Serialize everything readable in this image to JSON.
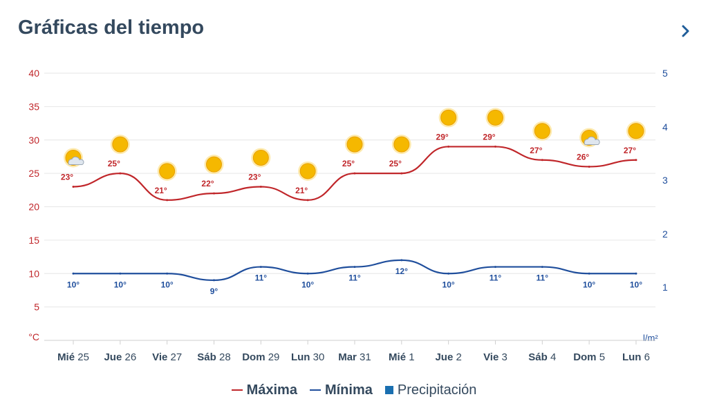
{
  "header": {
    "title": "Gráficas del tiempo",
    "next_icon": "chevron-right-icon"
  },
  "chart_data": {
    "type": "line",
    "left_axis": {
      "ticks": [
        40,
        35,
        30,
        25,
        20,
        15,
        10,
        5
      ],
      "unit": "°C",
      "range": [
        0,
        40
      ],
      "color": "#c0262a"
    },
    "right_axis": {
      "ticks": [
        5,
        4,
        3,
        2,
        1
      ],
      "unit": "l/m²",
      "color": "#1f4e9c"
    },
    "days": [
      {
        "dow": "Mié",
        "num": "25"
      },
      {
        "dow": "Jue",
        "num": "26"
      },
      {
        "dow": "Vie",
        "num": "27"
      },
      {
        "dow": "Sáb",
        "num": "28"
      },
      {
        "dow": "Dom",
        "num": "29"
      },
      {
        "dow": "Lun",
        "num": "30"
      },
      {
        "dow": "Mar",
        "num": "31"
      },
      {
        "dow": "Mié",
        "num": "1"
      },
      {
        "dow": "Jue",
        "num": "2"
      },
      {
        "dow": "Vie",
        "num": "3"
      },
      {
        "dow": "Sáb",
        "num": "4"
      },
      {
        "dow": "Dom",
        "num": "5"
      },
      {
        "dow": "Lun",
        "num": "6"
      }
    ],
    "series": [
      {
        "name": "Máxima",
        "color": "#c0262a",
        "values": [
          23,
          25,
          21,
          22,
          23,
          21,
          25,
          25,
          29,
          29,
          27,
          26,
          27
        ],
        "labels": [
          "23°",
          "25°",
          "21°",
          "22°",
          "23°",
          "21°",
          "25°",
          "25°",
          "29°",
          "29°",
          "27°",
          "26°",
          "27°"
        ]
      },
      {
        "name": "Mínima",
        "color": "#1f4e9c",
        "values": [
          10,
          10,
          10,
          9,
          11,
          10,
          11,
          12,
          10,
          11,
          11,
          10,
          10
        ],
        "labels": [
          "10°",
          "10°",
          "10°",
          "9°",
          "11°",
          "10°",
          "11°",
          "12°",
          "10°",
          "11°",
          "11°",
          "10°",
          "10°"
        ]
      },
      {
        "name": "Precipitación",
        "color": "#1a6fb0",
        "values": []
      }
    ],
    "weather_icons": [
      "partly-cloudy-icon",
      "sun-icon",
      "sun-icon",
      "sun-icon",
      "sun-icon",
      "sun-icon",
      "sun-icon",
      "sun-icon",
      "sun-icon",
      "sun-icon",
      "sun-icon",
      "partly-cloudy-icon",
      "sun-icon"
    ],
    "grid": true
  },
  "legend": {
    "items": [
      {
        "label": "Máxima",
        "color": "#c0262a",
        "shape": "line"
      },
      {
        "label": "Mínima",
        "color": "#1f4e9c",
        "shape": "line"
      },
      {
        "label": "Precipitación",
        "color": "#1a6fb0",
        "shape": "square"
      }
    ]
  }
}
